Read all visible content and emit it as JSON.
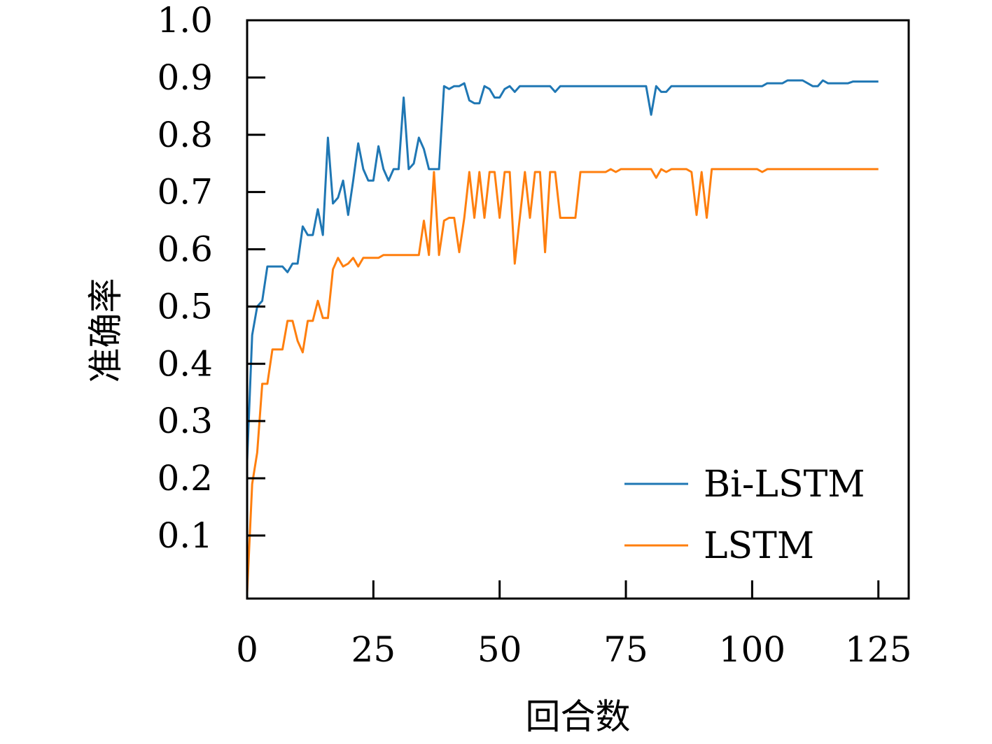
{
  "chart_data": {
    "type": "line",
    "xlabel": "回合数",
    "ylabel": "准确率",
    "xlim": [
      0,
      131
    ],
    "ylim": [
      -0.01,
      1.0
    ],
    "xticks": [
      0,
      25,
      50,
      75,
      100,
      125
    ],
    "xtick_labels": [
      "0",
      "25",
      "50",
      "75",
      "100",
      "125"
    ],
    "yticks": [
      0.1,
      0.2,
      0.3,
      0.4,
      0.5,
      0.6,
      0.7,
      0.8,
      0.9,
      1.0
    ],
    "ytick_labels": [
      "0.1",
      "0.2",
      "0.3",
      "0.4",
      "0.5",
      "0.6",
      "0.7",
      "0.8",
      "0.9",
      "1.0"
    ],
    "grid": false,
    "legend_position": "lower-right",
    "series": [
      {
        "name": "Bi-LSTM",
        "color": "#1f77b4",
        "x": [
          0,
          1,
          2,
          3,
          4,
          5,
          6,
          7,
          8,
          9,
          10,
          11,
          12,
          13,
          14,
          15,
          16,
          17,
          18,
          19,
          20,
          21,
          22,
          23,
          24,
          25,
          26,
          27,
          28,
          29,
          30,
          31,
          32,
          33,
          34,
          35,
          36,
          37,
          38,
          39,
          40,
          41,
          42,
          43,
          44,
          45,
          46,
          47,
          48,
          49,
          50,
          51,
          52,
          53,
          54,
          55,
          56,
          57,
          58,
          59,
          60,
          61,
          62,
          63,
          64,
          65,
          66,
          67,
          68,
          69,
          70,
          71,
          72,
          73,
          74,
          75,
          76,
          77,
          78,
          79,
          80,
          81,
          82,
          83,
          84,
          85,
          86,
          87,
          88,
          89,
          90,
          91,
          92,
          93,
          94,
          95,
          96,
          97,
          98,
          99,
          100,
          101,
          102,
          103,
          104,
          105,
          106,
          107,
          108,
          109,
          110,
          111,
          112,
          113,
          114,
          115,
          116,
          117,
          118,
          119,
          120,
          121,
          122,
          123,
          124,
          125
        ],
        "values": [
          0.23,
          0.45,
          0.5,
          0.51,
          0.57,
          0.57,
          0.57,
          0.57,
          0.56,
          0.575,
          0.575,
          0.64,
          0.625,
          0.625,
          0.67,
          0.625,
          0.795,
          0.68,
          0.69,
          0.72,
          0.66,
          0.72,
          0.785,
          0.74,
          0.72,
          0.72,
          0.78,
          0.74,
          0.72,
          0.74,
          0.74,
          0.865,
          0.74,
          0.75,
          0.795,
          0.775,
          0.74,
          0.74,
          0.74,
          0.885,
          0.88,
          0.885,
          0.885,
          0.89,
          0.86,
          0.855,
          0.855,
          0.885,
          0.88,
          0.865,
          0.865,
          0.88,
          0.885,
          0.875,
          0.885,
          0.885,
          0.885,
          0.885,
          0.885,
          0.885,
          0.885,
          0.875,
          0.885,
          0.885,
          0.885,
          0.885,
          0.885,
          0.885,
          0.885,
          0.885,
          0.885,
          0.885,
          0.885,
          0.885,
          0.885,
          0.885,
          0.885,
          0.885,
          0.885,
          0.885,
          0.835,
          0.885,
          0.875,
          0.875,
          0.885,
          0.885,
          0.885,
          0.885,
          0.885,
          0.885,
          0.885,
          0.885,
          0.885,
          0.885,
          0.885,
          0.885,
          0.885,
          0.885,
          0.885,
          0.885,
          0.885,
          0.885,
          0.885,
          0.89,
          0.89,
          0.89,
          0.89,
          0.895,
          0.895,
          0.895,
          0.895,
          0.89,
          0.885,
          0.885,
          0.895,
          0.89,
          0.89,
          0.89,
          0.89,
          0.89,
          0.893,
          0.893,
          0.893,
          0.893,
          0.893,
          0.893
        ]
      },
      {
        "name": "LSTM",
        "color": "#ff7f0e",
        "x": [
          0,
          1,
          2,
          3,
          4,
          5,
          6,
          7,
          8,
          9,
          10,
          11,
          12,
          13,
          14,
          15,
          16,
          17,
          18,
          19,
          20,
          21,
          22,
          23,
          24,
          25,
          26,
          27,
          28,
          29,
          30,
          31,
          32,
          33,
          34,
          35,
          36,
          37,
          38,
          39,
          40,
          41,
          42,
          43,
          44,
          45,
          46,
          47,
          48,
          49,
          50,
          51,
          52,
          53,
          54,
          55,
          56,
          57,
          58,
          59,
          60,
          61,
          62,
          63,
          64,
          65,
          66,
          67,
          68,
          69,
          70,
          71,
          72,
          73,
          74,
          75,
          76,
          77,
          78,
          79,
          80,
          81,
          82,
          83,
          84,
          85,
          86,
          87,
          88,
          89,
          90,
          91,
          92,
          93,
          94,
          95,
          96,
          97,
          98,
          99,
          100,
          101,
          102,
          103,
          104,
          105,
          106,
          107,
          108,
          109,
          110,
          111,
          112,
          113,
          114,
          115,
          116,
          117,
          118,
          119,
          120,
          121,
          122,
          123,
          124,
          125
        ],
        "values": [
          0.0,
          0.19,
          0.245,
          0.365,
          0.365,
          0.425,
          0.425,
          0.425,
          0.475,
          0.475,
          0.44,
          0.42,
          0.475,
          0.475,
          0.51,
          0.48,
          0.48,
          0.565,
          0.585,
          0.57,
          0.575,
          0.585,
          0.57,
          0.585,
          0.585,
          0.585,
          0.585,
          0.59,
          0.59,
          0.59,
          0.59,
          0.59,
          0.59,
          0.59,
          0.59,
          0.65,
          0.59,
          0.735,
          0.59,
          0.65,
          0.655,
          0.655,
          0.595,
          0.655,
          0.735,
          0.655,
          0.735,
          0.655,
          0.735,
          0.735,
          0.655,
          0.735,
          0.735,
          0.575,
          0.655,
          0.735,
          0.655,
          0.735,
          0.735,
          0.595,
          0.735,
          0.735,
          0.655,
          0.655,
          0.655,
          0.655,
          0.735,
          0.735,
          0.735,
          0.735,
          0.735,
          0.735,
          0.74,
          0.735,
          0.74,
          0.74,
          0.74,
          0.74,
          0.74,
          0.74,
          0.74,
          0.725,
          0.74,
          0.735,
          0.74,
          0.74,
          0.74,
          0.74,
          0.735,
          0.66,
          0.735,
          0.655,
          0.74,
          0.74,
          0.74,
          0.74,
          0.74,
          0.74,
          0.74,
          0.74,
          0.74,
          0.74,
          0.735,
          0.74,
          0.74,
          0.74,
          0.74,
          0.74,
          0.74,
          0.74,
          0.74,
          0.74,
          0.74,
          0.74,
          0.74,
          0.74,
          0.74,
          0.74,
          0.74,
          0.74,
          0.74,
          0.74,
          0.74,
          0.74,
          0.74,
          0.74
        ]
      }
    ]
  }
}
